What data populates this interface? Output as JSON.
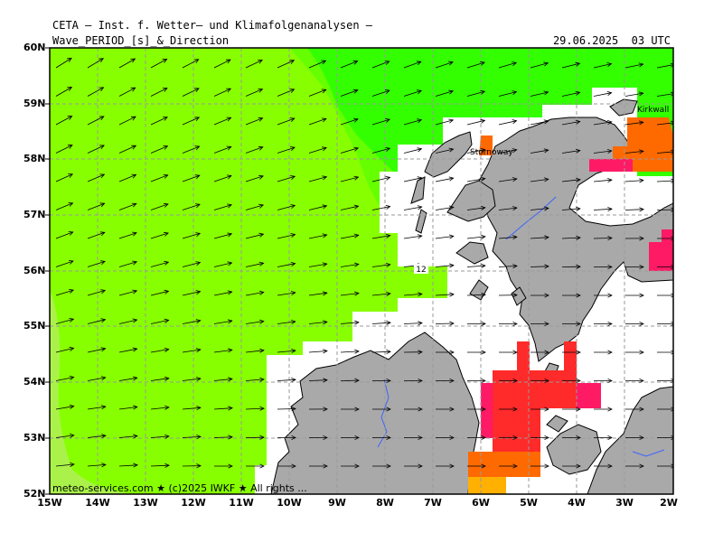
{
  "header": {
    "source_line": "CETA – Inst. f. Wetter– und Klimafolgenanalysen –",
    "variable": "Wave_PERIOD_[s]_&_Direction",
    "datetime": "29.06.2025  03 UTC"
  },
  "footer": {
    "credit": "meteo-services.com ★ (c)2025 IWKF ★ All rights ..."
  },
  "map": {
    "lat_labels": [
      "52N",
      "53N",
      "54N",
      "55N",
      "56N",
      "57N",
      "58N",
      "59N",
      "60N"
    ],
    "lon_labels": [
      "15W",
      "14W",
      "13W",
      "12W",
      "11W",
      "10W",
      "9W",
      "8W",
      "7W",
      "6W",
      "5W",
      "4W",
      "3W",
      "2W"
    ],
    "contour_label": "12",
    "place_labels": [
      "Stornoway",
      "Kirkwall"
    ],
    "colors": {
      "sea_green": "#33ff00",
      "sea_lightgreen": "#66ff00",
      "sea_yellowgreen": "#88ff00",
      "sea_palegreen": "#aaf24a",
      "land": "#a9a9a9",
      "high_orange": "#ff6a00",
      "high_red": "#ff2a2a",
      "high_magenta": "#ff1a66",
      "river": "#3c64ff"
    }
  }
}
